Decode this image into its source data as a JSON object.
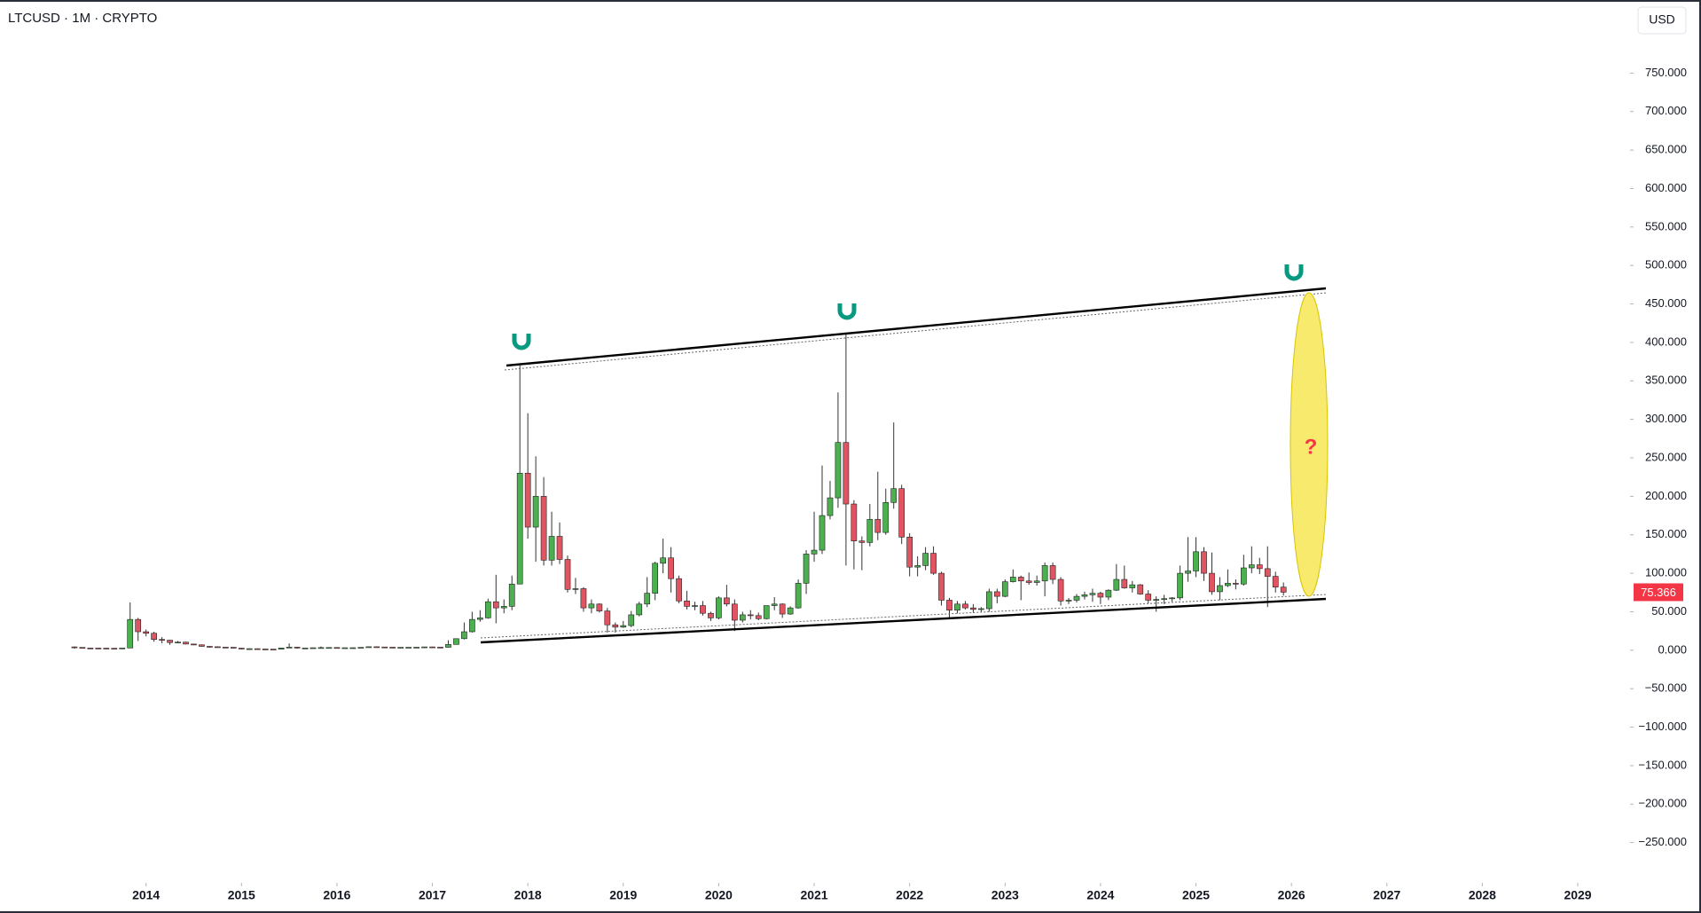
{
  "chart_data": {
    "type": "candlestick",
    "title": "LTCUSD · 1M · CRYPTO",
    "currency": "USD",
    "annotation": "?",
    "up_color": "#4caf50",
    "down_color": "#e05561",
    "wick_color": "#333333",
    "xlim": [
      2012.47,
      2029.52
    ],
    "xticks": [
      2014,
      2015,
      2016,
      2017,
      2018,
      2019,
      2020,
      2021,
      2022,
      2023,
      2024,
      2025,
      2026,
      2027,
      2028,
      2029
    ],
    "ylim": [
      -300,
      845
    ],
    "yticks": [
      {
        "value": -250,
        "label": "−250.000"
      },
      {
        "value": -200,
        "label": "−200.000"
      },
      {
        "value": -150,
        "label": "−150.000"
      },
      {
        "value": -100,
        "label": "−100.000"
      },
      {
        "value": -50,
        "label": "−50.000"
      },
      {
        "value": 0,
        "label": "0.000"
      },
      {
        "value": 50,
        "label": "50.000"
      },
      {
        "value": 100,
        "label": "100.000"
      },
      {
        "value": 150,
        "label": "150.000"
      },
      {
        "value": 200,
        "label": "200.000"
      },
      {
        "value": 250,
        "label": "250.000"
      },
      {
        "value": 300,
        "label": "300.000"
      },
      {
        "value": 350,
        "label": "350.000"
      },
      {
        "value": 400,
        "label": "400.000"
      },
      {
        "value": 450,
        "label": "450.000"
      },
      {
        "value": 500,
        "label": "500.000"
      },
      {
        "value": 550,
        "label": "550.000"
      },
      {
        "value": 600,
        "label": "600.000"
      },
      {
        "value": 650,
        "label": "650.000"
      },
      {
        "value": 700,
        "label": "700.000"
      },
      {
        "value": 750,
        "label": "750.000"
      }
    ],
    "x": [
      "2013-04",
      "2013-05",
      "2013-06",
      "2013-07",
      "2013-08",
      "2013-09",
      "2013-10",
      "2013-11",
      "2013-12",
      "2014-01",
      "2014-02",
      "2014-03",
      "2014-04",
      "2014-05",
      "2014-06",
      "2014-07",
      "2014-08",
      "2014-09",
      "2014-10",
      "2014-11",
      "2014-12",
      "2015-01",
      "2015-02",
      "2015-03",
      "2015-04",
      "2015-05",
      "2015-06",
      "2015-07",
      "2015-08",
      "2015-09",
      "2015-10",
      "2015-11",
      "2015-12",
      "2016-01",
      "2016-02",
      "2016-03",
      "2016-04",
      "2016-05",
      "2016-06",
      "2016-07",
      "2016-08",
      "2016-09",
      "2016-10",
      "2016-11",
      "2016-12",
      "2017-01",
      "2017-02",
      "2017-03",
      "2017-04",
      "2017-05",
      "2017-06",
      "2017-07",
      "2017-08",
      "2017-09",
      "2017-10",
      "2017-11",
      "2017-12",
      "2018-01",
      "2018-02",
      "2018-03",
      "2018-04",
      "2018-05",
      "2018-06",
      "2018-07",
      "2018-08",
      "2018-09",
      "2018-10",
      "2018-11",
      "2018-12",
      "2019-01",
      "2019-02",
      "2019-03",
      "2019-04",
      "2019-05",
      "2019-06",
      "2019-07",
      "2019-08",
      "2019-09",
      "2019-10",
      "2019-11",
      "2019-12",
      "2020-01",
      "2020-02",
      "2020-03",
      "2020-04",
      "2020-05",
      "2020-06",
      "2020-07",
      "2020-08",
      "2020-09",
      "2020-10",
      "2020-11",
      "2020-12",
      "2021-01",
      "2021-02",
      "2021-03",
      "2021-04",
      "2021-05",
      "2021-06",
      "2021-07",
      "2021-08",
      "2021-09",
      "2021-10",
      "2021-11",
      "2021-12",
      "2022-01",
      "2022-02",
      "2022-03",
      "2022-04",
      "2022-05",
      "2022-06",
      "2022-07",
      "2022-08",
      "2022-09",
      "2022-10",
      "2022-11",
      "2022-12",
      "2023-01",
      "2023-02",
      "2023-03",
      "2023-04",
      "2023-05",
      "2023-06",
      "2023-07",
      "2023-08",
      "2023-09",
      "2023-10",
      "2023-11",
      "2023-12",
      "2024-01",
      "2024-02",
      "2024-03",
      "2024-04",
      "2024-05",
      "2024-06",
      "2024-07",
      "2024-08",
      "2024-09",
      "2024-10",
      "2024-11",
      "2024-12",
      "2025-01",
      "2025-02",
      "2025-03",
      "2025-04",
      "2025-05",
      "2025-06",
      "2025-07",
      "2025-08",
      "2025-09",
      "2025-10",
      "2025-11",
      "2025-12"
    ],
    "ohlc": [
      [
        4.3,
        4.9,
        2.0,
        3.6
      ],
      [
        3.6,
        3.8,
        2.6,
        2.9
      ],
      [
        2.9,
        3.1,
        2.4,
        2.8
      ],
      [
        2.8,
        3.0,
        2.3,
        2.7
      ],
      [
        2.7,
        3.0,
        2.2,
        2.5
      ],
      [
        2.5,
        2.8,
        2.0,
        2.3
      ],
      [
        2.3,
        3.0,
        1.9,
        2.9
      ],
      [
        2.9,
        62,
        2.8,
        40
      ],
      [
        40,
        42,
        12,
        24
      ],
      [
        24,
        27,
        18,
        22
      ],
      [
        22,
        24,
        11,
        14
      ],
      [
        14,
        17,
        9,
        13
      ],
      [
        13,
        13.5,
        7,
        10
      ],
      [
        10,
        12,
        9,
        10.5
      ],
      [
        10.5,
        11,
        7.5,
        8
      ],
      [
        8,
        8.5,
        6.5,
        7
      ],
      [
        7,
        7.5,
        4.5,
        5
      ],
      [
        5,
        5.5,
        3.7,
        4.5
      ],
      [
        4.5,
        5,
        3.5,
        4
      ],
      [
        4,
        4.2,
        3.3,
        3.8
      ],
      [
        3.8,
        4,
        2.6,
        2.7
      ],
      [
        2.7,
        2.9,
        1.1,
        1.6
      ],
      [
        1.6,
        2.5,
        1.4,
        2.0
      ],
      [
        2.0,
        2.2,
        1.6,
        1.6
      ],
      [
        1.6,
        1.7,
        1.3,
        1.4
      ],
      [
        1.4,
        1.5,
        1.3,
        1.3
      ],
      [
        1.3,
        3.0,
        1.3,
        2.9
      ],
      [
        2.9,
        8.9,
        2.9,
        4.0
      ],
      [
        4.0,
        4.5,
        2.0,
        2.9
      ],
      [
        2.9,
        3.1,
        2.7,
        2.9
      ],
      [
        2.9,
        3.4,
        2.8,
        3.2
      ],
      [
        3.2,
        4.9,
        2.9,
        3.4
      ],
      [
        3.4,
        3.8,
        3.0,
        3.5
      ],
      [
        3.5,
        3.7,
        2.9,
        3.1
      ],
      [
        3.1,
        3.4,
        3.0,
        3.2
      ],
      [
        3.2,
        3.4,
        3.0,
        3.25
      ],
      [
        3.25,
        3.8,
        3.1,
        3.7
      ],
      [
        3.7,
        4.9,
        3.6,
        4.5
      ],
      [
        4.5,
        5.0,
        3.6,
        4.2
      ],
      [
        4.2,
        4.4,
        3.7,
        3.9
      ],
      [
        3.9,
        4.0,
        3.4,
        3.7
      ],
      [
        3.7,
        3.9,
        3.6,
        3.75
      ],
      [
        3.75,
        3.9,
        3.6,
        3.8
      ],
      [
        3.8,
        4.0,
        3.6,
        3.9
      ],
      [
        3.9,
        4.5,
        3.9,
        4.3
      ],
      [
        4.3,
        4.6,
        3.8,
        4.0
      ],
      [
        4.0,
        4.1,
        3.6,
        3.8
      ],
      [
        3.8,
        13,
        3.6,
        7.5
      ],
      [
        7.5,
        15,
        7.5,
        15
      ],
      [
        15,
        36,
        14,
        24
      ],
      [
        24,
        50,
        23,
        40
      ],
      [
        40,
        52,
        37,
        42
      ],
      [
        42,
        67,
        41,
        63
      ],
      [
        63,
        98,
        35,
        55
      ],
      [
        55,
        66,
        48,
        57
      ],
      [
        57,
        97,
        52,
        86
      ],
      [
        86,
        370,
        86,
        230
      ],
      [
        230,
        308,
        145,
        160
      ],
      [
        160,
        252,
        115,
        200
      ],
      [
        200,
        225,
        110,
        117
      ],
      [
        117,
        180,
        110,
        148
      ],
      [
        148,
        166,
        112,
        118
      ],
      [
        118,
        123,
        75,
        79
      ],
      [
        79,
        94,
        73,
        80
      ],
      [
        80,
        82,
        50,
        55
      ],
      [
        55,
        66,
        48,
        60
      ],
      [
        60,
        61,
        49,
        51
      ],
      [
        51,
        55,
        23,
        33
      ],
      [
        33,
        36,
        23,
        30
      ],
      [
        30,
        38,
        29,
        32
      ],
      [
        32,
        51,
        30,
        46
      ],
      [
        46,
        63,
        44,
        60
      ],
      [
        60,
        95,
        56,
        74
      ],
      [
        74,
        115,
        65,
        113
      ],
      [
        113,
        145,
        100,
        120
      ],
      [
        120,
        134,
        75,
        93
      ],
      [
        93,
        97,
        61,
        64
      ],
      [
        64,
        77,
        53,
        57
      ],
      [
        57,
        63,
        52,
        58
      ],
      [
        58,
        64,
        45,
        48
      ],
      [
        48,
        50,
        38,
        42
      ],
      [
        42,
        70,
        40,
        68
      ],
      [
        68,
        85,
        57,
        60
      ],
      [
        60,
        66,
        25,
        39
      ],
      [
        39,
        50,
        36,
        46
      ],
      [
        46,
        52,
        40,
        45
      ],
      [
        45,
        49,
        39,
        41
      ],
      [
        41,
        58,
        40,
        58
      ],
      [
        58,
        69,
        52,
        60
      ],
      [
        60,
        61,
        42,
        47
      ],
      [
        47,
        57,
        46,
        55
      ],
      [
        55,
        92,
        54,
        87
      ],
      [
        87,
        130,
        73,
        125
      ],
      [
        125,
        180,
        115,
        130
      ],
      [
        130,
        240,
        125,
        175
      ],
      [
        175,
        220,
        170,
        198
      ],
      [
        198,
        335,
        185,
        270
      ],
      [
        270,
        413,
        110,
        190
      ],
      [
        190,
        195,
        105,
        142
      ],
      [
        142,
        148,
        104,
        140
      ],
      [
        140,
        190,
        135,
        170
      ],
      [
        170,
        232,
        143,
        153
      ],
      [
        153,
        210,
        150,
        192
      ],
      [
        192,
        296,
        184,
        210
      ],
      [
        210,
        215,
        138,
        147
      ],
      [
        147,
        152,
        96,
        108
      ],
      [
        108,
        122,
        96,
        110
      ],
      [
        110,
        134,
        104,
        126
      ],
      [
        126,
        135,
        98,
        100
      ],
      [
        100,
        102,
        58,
        65
      ],
      [
        65,
        68,
        40,
        52
      ],
      [
        52,
        64,
        48,
        60
      ],
      [
        60,
        64,
        53,
        55
      ],
      [
        55,
        60,
        49,
        53
      ],
      [
        53,
        56,
        50,
        54
      ],
      [
        54,
        80,
        50,
        76
      ],
      [
        76,
        80,
        61,
        70
      ],
      [
        70,
        92,
        69,
        89
      ],
      [
        89,
        105,
        88,
        95
      ],
      [
        95,
        97,
        65,
        90
      ],
      [
        90,
        101,
        85,
        88
      ],
      [
        88,
        97,
        84,
        90
      ],
      [
        90,
        114,
        70,
        110
      ],
      [
        110,
        114,
        86,
        92
      ],
      [
        92,
        95,
        58,
        64
      ],
      [
        64,
        68,
        60,
        65
      ],
      [
        65,
        73,
        62,
        70
      ],
      [
        70,
        76,
        66,
        72
      ],
      [
        72,
        80,
        63,
        74
      ],
      [
        74,
        76,
        60,
        69
      ],
      [
        69,
        79,
        65,
        78
      ],
      [
        78,
        112,
        77,
        92
      ],
      [
        92,
        110,
        80,
        81
      ],
      [
        81,
        90,
        75,
        85
      ],
      [
        85,
        86,
        72,
        73
      ],
      [
        73,
        78,
        61,
        65
      ],
      [
        65,
        70,
        50,
        66
      ],
      [
        66,
        72,
        60,
        67
      ],
      [
        67,
        69,
        63,
        68
      ],
      [
        68,
        110,
        65,
        100
      ],
      [
        100,
        147,
        89,
        103
      ],
      [
        103,
        147,
        95,
        128
      ],
      [
        128,
        134,
        90,
        100
      ],
      [
        100,
        127,
        72,
        76
      ],
      [
        76,
        95,
        65,
        84
      ],
      [
        84,
        105,
        82,
        87
      ],
      [
        87,
        92,
        79,
        86
      ],
      [
        86,
        124,
        84,
        107
      ],
      [
        107,
        135,
        100,
        111
      ],
      [
        111,
        120,
        99,
        106
      ],
      [
        106,
        135,
        56,
        96
      ],
      [
        96,
        102,
        75,
        82
      ],
      [
        82,
        88,
        71,
        75.366
      ]
    ]
  }
}
